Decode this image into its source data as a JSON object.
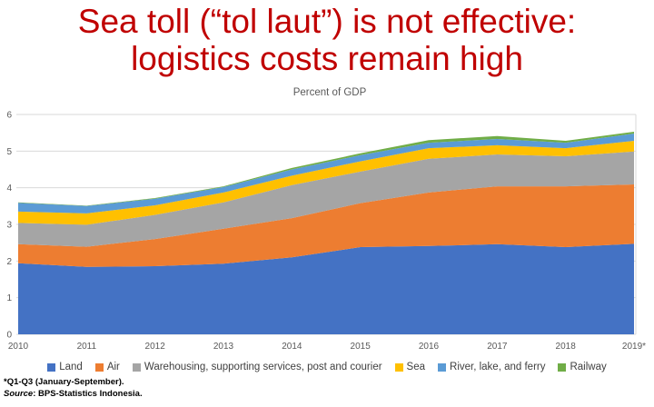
{
  "title": {
    "line1": "Sea toll (“tol laut”) is not effective:",
    "line2": "logistics costs remain high"
  },
  "chart_data": {
    "type": "area",
    "stacked": true,
    "title": "Percent of GDP",
    "categories": [
      "2010",
      "2011",
      "2012",
      "2013",
      "2014",
      "2015",
      "2016",
      "2017",
      "2018",
      "2019*"
    ],
    "series": [
      {
        "name": "Land",
        "color": "#4472C4",
        "values": [
          1.94,
          1.84,
          1.86,
          1.93,
          2.1,
          2.38,
          2.41,
          2.46,
          2.38,
          2.47
        ]
      },
      {
        "name": "Air",
        "color": "#ED7D31",
        "values": [
          0.52,
          0.55,
          0.74,
          0.95,
          1.07,
          1.2,
          1.46,
          1.58,
          1.66,
          1.62
        ]
      },
      {
        "name": "Warehousing, supporting services, post and courier",
        "color": "#A5A5A5",
        "values": [
          0.58,
          0.6,
          0.66,
          0.72,
          0.9,
          0.86,
          0.92,
          0.87,
          0.82,
          0.9
        ]
      },
      {
        "name": "Sea",
        "color": "#FFC000",
        "values": [
          0.31,
          0.31,
          0.26,
          0.27,
          0.26,
          0.28,
          0.29,
          0.25,
          0.22,
          0.29
        ]
      },
      {
        "name": "River, lake, and ferry",
        "color": "#5B9BD5",
        "values": [
          0.24,
          0.2,
          0.18,
          0.15,
          0.17,
          0.17,
          0.15,
          0.17,
          0.15,
          0.2
        ]
      },
      {
        "name": "Railway",
        "color": "#70AD47",
        "values": [
          0.01,
          0.01,
          0.02,
          0.02,
          0.04,
          0.05,
          0.07,
          0.08,
          0.05,
          0.05
        ]
      }
    ],
    "ylim": [
      0,
      6
    ],
    "yticks": [
      0,
      1,
      2,
      3,
      4,
      5,
      6
    ],
    "grid": true,
    "legend_position": "bottom"
  },
  "footnotes": {
    "line1": "*Q1-Q3 (January-September).",
    "source_label": "Source",
    "source_rest": ": BPS-Statistics Indonesia."
  }
}
